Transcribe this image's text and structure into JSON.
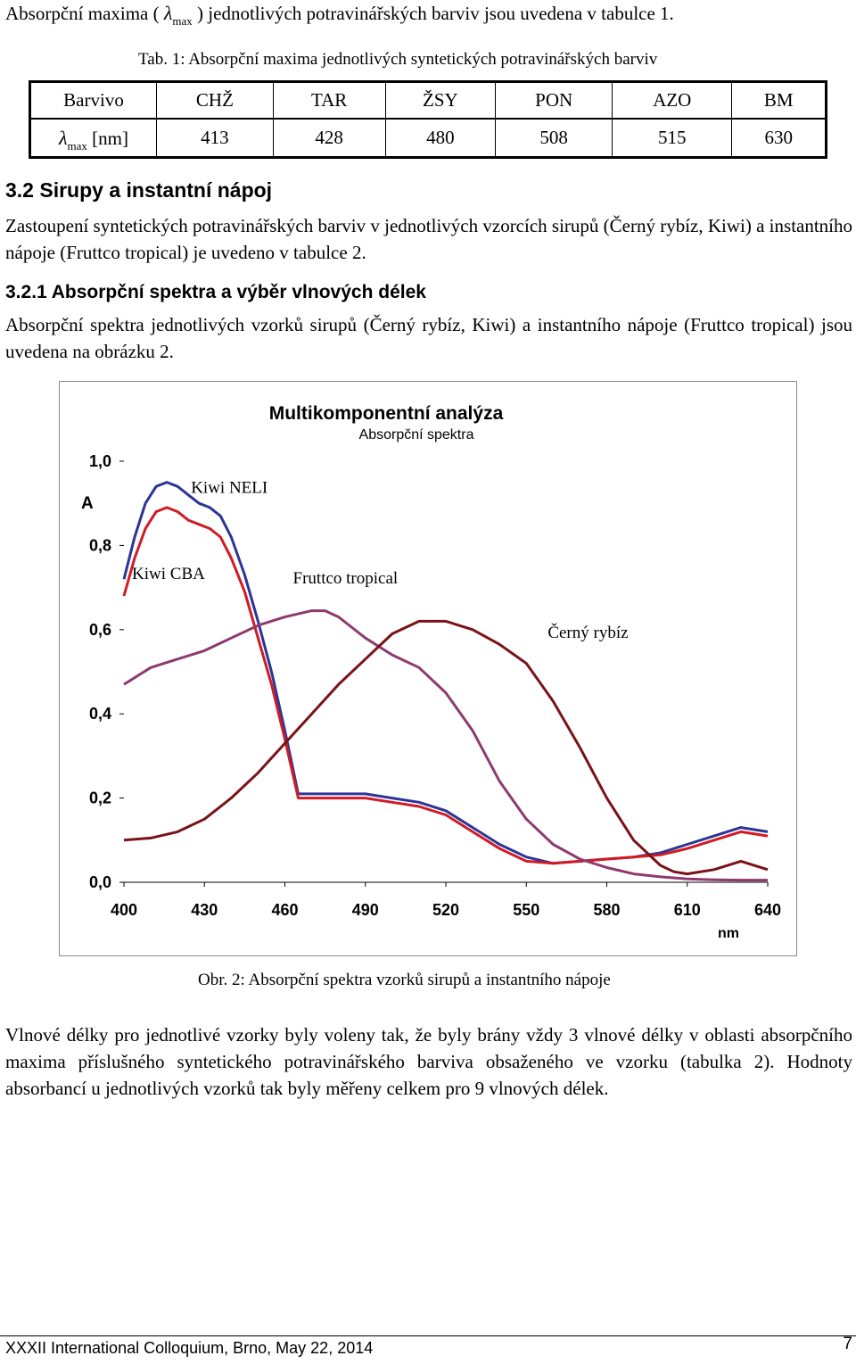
{
  "intro": {
    "before": "Absorpční maxima (",
    "lambda": "λ",
    "sub": "max",
    "after": ") jednotlivých potravinářských barviv jsou uvedena v tabulce 1."
  },
  "table1": {
    "caption": "Tab. 1: Absorpční maxima jednotlivých syntetických potravinářských barviv",
    "header": [
      "Barvivo",
      "CHŽ",
      "TAR",
      "ŽSY",
      "PON",
      "AZO",
      "BM"
    ],
    "row_label_lambda": "λ",
    "row_label_sub": "max",
    "row_label_unit": "[nm]",
    "values": [
      "413",
      "428",
      "480",
      "508",
      "515",
      "630"
    ]
  },
  "section_3_2": {
    "heading": "3.2 Sirupy a instantní nápoj",
    "text": "Zastoupení syntetických potravinářských barviv v jednotlivých vzorcích sirupů (Černý rybíz, Kiwi) a instantního nápoje (Fruttco tropical) je uvedeno v tabulce 2."
  },
  "section_3_2_1": {
    "heading": "3.2.1 Absorpční spektra a výběr vlnových délek",
    "text": "Absorpční spektra jednotlivých vzorků sirupů (Černý rybíz, Kiwi) a instantního nápoje (Fruttco tropical) jsou uvedena na obrázku 2."
  },
  "figure_caption": "Obr. 2: Absorpční spektra vzorků sirupů a instantního nápoje",
  "closing_text": "Vlnové délky pro jednotlivé vzorky byly voleny tak, že byly brány vždy 3 vlnové délky v oblasti absorpčního maxima příslušného syntetického potravinářského barviva obsaženého ve vzorku (tabulka 2). Hodnoty absorbancí u jednotlivých vzorků tak byly měřeny celkem pro 9 vlnových délek.",
  "footer": {
    "text": "XXXII International Colloquium, Brno, May 22, 2014",
    "page": "7"
  },
  "chart_data": {
    "type": "line",
    "title": "Multikomponentní analýza",
    "subtitle": "Absorpční spektra",
    "xlabel": "nm",
    "ylabel": "A",
    "xlim": [
      400,
      640
    ],
    "ylim": [
      0,
      1.0
    ],
    "x_ticks": [
      "400",
      "430",
      "460",
      "490",
      "520",
      "550",
      "580",
      "610",
      "640"
    ],
    "y_ticks": [
      "0,0",
      "0,2",
      "0,4",
      "0,6",
      "0,8",
      "1,0"
    ],
    "grid": false,
    "series": [
      {
        "name": "Kiwi NELI",
        "color": "#2c3596",
        "x": [
          400,
          404,
          408,
          412,
          416,
          420,
          424,
          428,
          432,
          436,
          440,
          445,
          450,
          455,
          460,
          465,
          470,
          475,
          480,
          490,
          500,
          510,
          520,
          530,
          540,
          550,
          560,
          570,
          580,
          590,
          600,
          610,
          620,
          630,
          640
        ],
        "y": [
          0.72,
          0.82,
          0.9,
          0.94,
          0.95,
          0.94,
          0.92,
          0.9,
          0.89,
          0.87,
          0.82,
          0.73,
          0.62,
          0.5,
          0.36,
          0.21,
          0.21,
          0.21,
          0.21,
          0.21,
          0.2,
          0.19,
          0.17,
          0.13,
          0.09,
          0.06,
          0.045,
          0.05,
          0.055,
          0.06,
          0.07,
          0.09,
          0.11,
          0.13,
          0.12
        ]
      },
      {
        "name": "Kiwi CBA",
        "color": "#d11a24",
        "x": [
          400,
          404,
          408,
          412,
          416,
          420,
          424,
          428,
          432,
          436,
          440,
          445,
          450,
          455,
          460,
          465,
          470,
          475,
          480,
          490,
          500,
          510,
          520,
          530,
          540,
          550,
          560,
          570,
          580,
          590,
          600,
          610,
          620,
          630,
          640
        ],
        "y": [
          0.68,
          0.77,
          0.84,
          0.88,
          0.89,
          0.88,
          0.86,
          0.85,
          0.84,
          0.82,
          0.77,
          0.69,
          0.58,
          0.47,
          0.34,
          0.2,
          0.2,
          0.2,
          0.2,
          0.2,
          0.19,
          0.18,
          0.16,
          0.12,
          0.08,
          0.05,
          0.045,
          0.05,
          0.055,
          0.06,
          0.065,
          0.08,
          0.1,
          0.12,
          0.11
        ]
      },
      {
        "name": "Fruttco tropical",
        "color": "#8e3a6e",
        "x": [
          400,
          410,
          420,
          430,
          440,
          450,
          460,
          470,
          475,
          480,
          490,
          500,
          510,
          520,
          530,
          540,
          550,
          560,
          570,
          580,
          590,
          600,
          610,
          620,
          630,
          640
        ],
        "y": [
          0.47,
          0.51,
          0.53,
          0.55,
          0.58,
          0.61,
          0.63,
          0.645,
          0.645,
          0.63,
          0.58,
          0.54,
          0.51,
          0.45,
          0.36,
          0.24,
          0.15,
          0.09,
          0.055,
          0.035,
          0.02,
          0.013,
          0.008,
          0.006,
          0.005,
          0.005
        ]
      },
      {
        "name": "Černý rybíz",
        "color": "#7a1218",
        "x": [
          400,
          410,
          420,
          430,
          440,
          450,
          460,
          470,
          480,
          490,
          500,
          510,
          520,
          530,
          540,
          550,
          560,
          570,
          580,
          590,
          600,
          605,
          610,
          620,
          630,
          640
        ],
        "y": [
          0.1,
          0.105,
          0.12,
          0.15,
          0.2,
          0.26,
          0.33,
          0.4,
          0.47,
          0.53,
          0.59,
          0.62,
          0.62,
          0.6,
          0.565,
          0.52,
          0.43,
          0.32,
          0.2,
          0.1,
          0.04,
          0.025,
          0.02,
          0.03,
          0.05,
          0.03
        ]
      }
    ],
    "annotations": [
      {
        "text": "Kiwi NELI",
        "x": 425,
        "y": 0.925
      },
      {
        "text": "Kiwi CBA",
        "x": 403,
        "y": 0.72
      },
      {
        "text": "Fruttco tropical",
        "x": 463,
        "y": 0.71
      },
      {
        "text": "Černý rybíz",
        "x": 558,
        "y": 0.58
      }
    ]
  }
}
